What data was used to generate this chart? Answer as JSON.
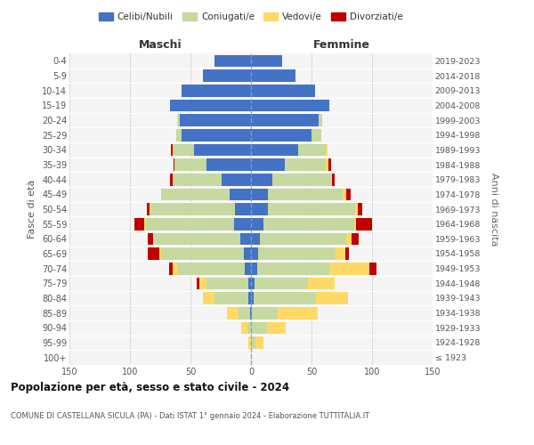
{
  "age_groups": [
    "100+",
    "95-99",
    "90-94",
    "85-89",
    "80-84",
    "75-79",
    "70-74",
    "65-69",
    "60-64",
    "55-59",
    "50-54",
    "45-49",
    "40-44",
    "35-39",
    "30-34",
    "25-29",
    "20-24",
    "15-19",
    "10-14",
    "5-9",
    "0-4"
  ],
  "birth_years": [
    "≤ 1923",
    "1924-1928",
    "1929-1933",
    "1934-1938",
    "1939-1943",
    "1944-1948",
    "1949-1953",
    "1954-1958",
    "1959-1963",
    "1964-1968",
    "1969-1973",
    "1974-1978",
    "1979-1983",
    "1984-1988",
    "1989-1993",
    "1994-1998",
    "1999-2003",
    "2004-2008",
    "2009-2013",
    "2014-2018",
    "2019-2023"
  ],
  "colors": {
    "celibi": "#4472C4",
    "coniugati": "#c5d9a0",
    "vedovi": "#FFD966",
    "divorziati": "#C00000",
    "background": "#ffffff",
    "grid": "#d0d0d0",
    "dashed_line": "#9999bb"
  },
  "maschi": {
    "celibi": [
      0,
      0,
      0,
      1,
      2,
      2,
      5,
      6,
      9,
      14,
      13,
      18,
      24,
      37,
      47,
      57,
      59,
      67,
      57,
      40,
      30
    ],
    "coniugati": [
      0,
      0,
      3,
      9,
      28,
      35,
      56,
      68,
      71,
      73,
      70,
      56,
      41,
      26,
      17,
      5,
      1,
      0,
      0,
      0,
      0
    ],
    "vedovi": [
      0,
      2,
      5,
      10,
      10,
      6,
      4,
      2,
      1,
      1,
      1,
      0,
      0,
      0,
      1,
      0,
      1,
      0,
      0,
      0,
      0
    ],
    "divorziati": [
      0,
      0,
      0,
      0,
      0,
      2,
      3,
      9,
      4,
      8,
      2,
      0,
      2,
      1,
      1,
      0,
      0,
      0,
      0,
      0,
      0
    ]
  },
  "femmine": {
    "celibi": [
      0,
      0,
      0,
      1,
      2,
      3,
      5,
      6,
      7,
      10,
      14,
      14,
      18,
      28,
      39,
      50,
      56,
      65,
      53,
      37,
      26
    ],
    "coniugati": [
      0,
      4,
      13,
      21,
      52,
      44,
      60,
      64,
      72,
      75,
      72,
      62,
      48,
      34,
      23,
      8,
      3,
      0,
      0,
      0,
      0
    ],
    "vedovi": [
      1,
      6,
      16,
      33,
      26,
      22,
      33,
      8,
      4,
      2,
      2,
      3,
      1,
      2,
      1,
      0,
      0,
      0,
      0,
      0,
      0
    ],
    "divorziati": [
      0,
      0,
      0,
      0,
      0,
      0,
      6,
      3,
      6,
      13,
      4,
      3,
      2,
      2,
      0,
      0,
      0,
      0,
      0,
      0,
      0
    ]
  },
  "title_main": "Popolazione per età, sesso e stato civile - 2024",
  "title_sub": "COMUNE DI CASTELLANA SICULA (PA) - Dati ISTAT 1° gennaio 2024 - Elaborazione TUTTITALIA.IT",
  "xlabel_left": "Maschi",
  "xlabel_right": "Femmine",
  "ylabel_left": "Fasce di età",
  "ylabel_right": "Anni di nascita",
  "xlim": 150,
  "legend_labels": [
    "Celibi/Nubili",
    "Coniugati/e",
    "Vedovi/e",
    "Divorziati/e"
  ]
}
